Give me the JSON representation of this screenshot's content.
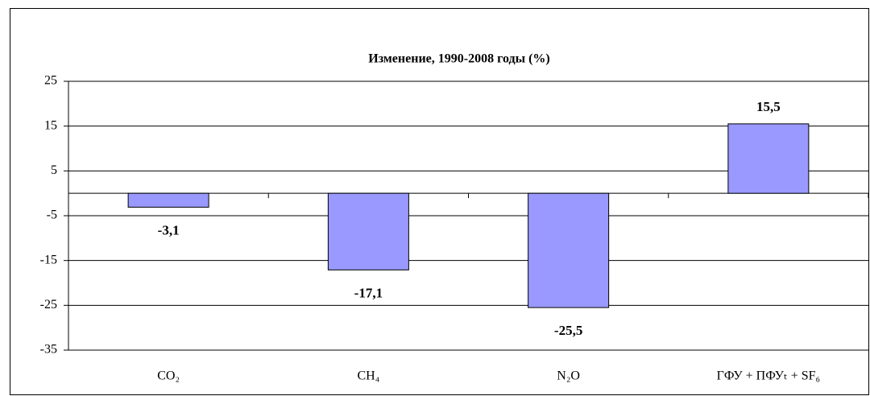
{
  "chart_data": {
    "type": "bar",
    "title": "Изменение, 1990-2008 годы (%)",
    "categories": [
      "CO₂",
      "CH₄",
      "N₂O",
      "ГФУ + ПФУₜ + SF₆"
    ],
    "values": [
      -3.1,
      -17.1,
      -25.5,
      15.5
    ],
    "value_labels": [
      "-3,1",
      "-17,1",
      "-25,5",
      "15,5"
    ],
    "color": "#9999ff",
    "ylim": [
      -35,
      25
    ],
    "yticks": [
      -35,
      -25,
      -15,
      -5,
      5,
      15,
      25
    ],
    "grid": true
  }
}
